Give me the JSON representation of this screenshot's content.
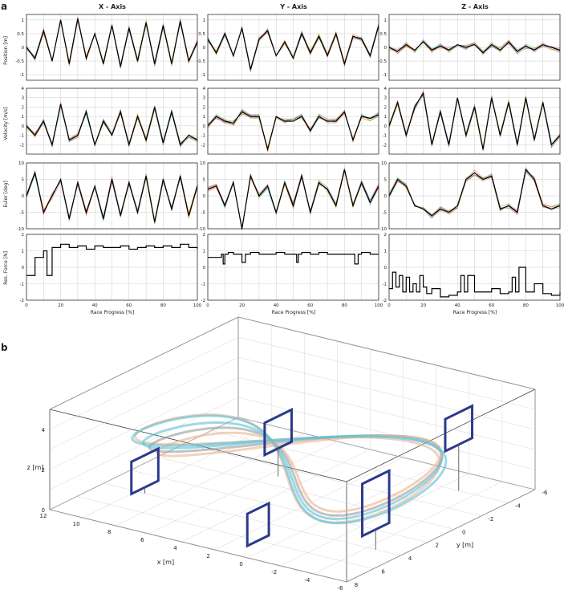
{
  "panel_labels": {
    "a": "a",
    "b": "b"
  },
  "columns": [
    "X - Axis",
    "Y - Axis",
    "Z - Axis"
  ],
  "row_labels": [
    "Position [m]",
    "Velocity [m/s]",
    "Euler [deg]",
    "Res. Force [N]"
  ],
  "x_label": "Race Progress [%]",
  "colors": {
    "mean": "#000000",
    "frame": "#333333",
    "grid": "#cccccc",
    "runs": [
      "#e41a1c",
      "#377eb8",
      "#4daf4a",
      "#984ea3",
      "#ff7f00",
      "#a65628",
      "#f781bf",
      "#17becf",
      "#bcbd22"
    ],
    "traj_blue": "#5bc0d8",
    "traj_orange": "#e8b48f",
    "traj_gray": "#9a9a9a",
    "gate": "#2b3a8c"
  },
  "chart_data": [
    {
      "type": "line",
      "panel": "position-x",
      "row": 0,
      "col": 0,
      "xlim": [
        0,
        100
      ],
      "ylim": [
        -1.2,
        1.2
      ],
      "yticks": [
        -1,
        -0.5,
        0,
        0.5,
        1
      ],
      "xticks": [],
      "x": [
        0,
        5,
        10,
        15,
        20,
        25,
        30,
        35,
        40,
        45,
        50,
        55,
        60,
        65,
        70,
        75,
        80,
        85,
        90,
        95,
        100
      ],
      "values": [
        0,
        -0.4,
        0.6,
        -0.5,
        1.0,
        -0.6,
        1.05,
        -0.4,
        0.5,
        -0.6,
        0.8,
        -0.7,
        0.7,
        -0.5,
        0.9,
        -0.6,
        0.8,
        -0.6,
        0.95,
        -0.5,
        0.2
      ]
    },
    {
      "type": "line",
      "panel": "position-y",
      "row": 0,
      "col": 1,
      "xlim": [
        0,
        100
      ],
      "ylim": [
        -1.2,
        1.2
      ],
      "yticks": [
        -1,
        -0.5,
        0,
        0.5,
        1
      ],
      "xticks": [],
      "x": [
        0,
        5,
        10,
        15,
        20,
        25,
        30,
        35,
        40,
        45,
        50,
        55,
        60,
        65,
        70,
        75,
        80,
        85,
        90,
        95,
        100
      ],
      "values": [
        0.3,
        -0.2,
        0.5,
        -0.3,
        0.7,
        -0.8,
        0.3,
        0.6,
        -0.3,
        0.2,
        -0.4,
        0.5,
        -0.2,
        0.4,
        -0.3,
        0.5,
        -0.6,
        0.4,
        0.3,
        -0.3,
        0.8
      ]
    },
    {
      "type": "line",
      "panel": "position-z",
      "row": 0,
      "col": 2,
      "xlim": [
        0,
        100
      ],
      "ylim": [
        -1.2,
        1.2
      ],
      "yticks": [
        -1,
        -0.5,
        0,
        0.5,
        1
      ],
      "xticks": [],
      "x": [
        0,
        5,
        10,
        15,
        20,
        25,
        30,
        35,
        40,
        45,
        50,
        55,
        60,
        65,
        70,
        75,
        80,
        85,
        90,
        95,
        100
      ],
      "values": [
        0,
        -0.15,
        0.1,
        -0.1,
        0.2,
        -0.1,
        0.05,
        -0.1,
        0.1,
        0,
        0.1,
        -0.2,
        0.1,
        -0.1,
        0.2,
        -0.15,
        0.05,
        -0.1,
        0.1,
        0,
        -0.1
      ]
    },
    {
      "type": "line",
      "panel": "velocity-x",
      "row": 1,
      "col": 0,
      "xlim": [
        0,
        100
      ],
      "ylim": [
        -3,
        4
      ],
      "yticks": [
        -2,
        -1,
        0,
        1,
        2,
        3,
        4
      ],
      "xticks": [],
      "x": [
        0,
        5,
        10,
        15,
        20,
        25,
        30,
        35,
        40,
        45,
        50,
        55,
        60,
        65,
        70,
        75,
        80,
        85,
        90,
        95,
        100
      ],
      "values": [
        0,
        -1,
        0.5,
        -2,
        2.3,
        -1.5,
        -1,
        1.5,
        -2,
        0.5,
        -1,
        1.5,
        -2,
        1,
        -1.5,
        2,
        -1.8,
        1.5,
        -2,
        -1,
        -1.5
      ]
    },
    {
      "type": "line",
      "panel": "velocity-y",
      "row": 1,
      "col": 1,
      "xlim": [
        0,
        100
      ],
      "ylim": [
        -3,
        4
      ],
      "yticks": [
        -2,
        -1,
        0,
        1,
        2,
        3,
        4
      ],
      "xticks": [],
      "x": [
        0,
        5,
        10,
        15,
        20,
        25,
        30,
        35,
        40,
        45,
        50,
        55,
        60,
        65,
        70,
        75,
        80,
        85,
        90,
        95,
        100
      ],
      "values": [
        0,
        1,
        0.5,
        0.3,
        1.5,
        1,
        1,
        -2.5,
        1,
        0.5,
        0.5,
        1,
        -0.5,
        1,
        0.5,
        0.5,
        1.5,
        -1.5,
        1,
        0.8,
        1.2
      ]
    },
    {
      "type": "line",
      "panel": "velocity-z",
      "row": 1,
      "col": 2,
      "xlim": [
        0,
        100
      ],
      "ylim": [
        -3,
        4
      ],
      "yticks": [
        -2,
        -1,
        0,
        1,
        2,
        3,
        4
      ],
      "xticks": [],
      "x": [
        0,
        5,
        10,
        15,
        20,
        25,
        30,
        35,
        40,
        45,
        50,
        55,
        60,
        65,
        70,
        75,
        80,
        85,
        90,
        95,
        100
      ],
      "values": [
        0,
        2.5,
        -1,
        2,
        3.5,
        -2,
        1.5,
        -2,
        3,
        -1,
        2,
        -2.5,
        3,
        -1,
        2.5,
        -2,
        3,
        -1.5,
        2.5,
        -2,
        -1
      ]
    },
    {
      "type": "line",
      "panel": "euler-x",
      "row": 2,
      "col": 0,
      "xlim": [
        0,
        100
      ],
      "ylim": [
        -10,
        10
      ],
      "yticks": [
        -10,
        -5,
        0,
        5,
        10
      ],
      "xticks": [],
      "x": [
        0,
        5,
        10,
        15,
        20,
        25,
        30,
        35,
        40,
        45,
        50,
        55,
        60,
        65,
        70,
        75,
        80,
        85,
        90,
        95,
        100
      ],
      "values": [
        0,
        7,
        -5,
        0,
        5,
        -7,
        4,
        -5,
        3,
        -7,
        5,
        -6,
        4,
        -5,
        6,
        -8,
        5,
        -4,
        6,
        -6,
        3
      ]
    },
    {
      "type": "line",
      "panel": "euler-y",
      "row": 2,
      "col": 1,
      "xlim": [
        0,
        100
      ],
      "ylim": [
        -10,
        10
      ],
      "yticks": [
        -10,
        -5,
        0,
        5,
        10
      ],
      "xticks": [],
      "x": [
        0,
        5,
        10,
        15,
        20,
        25,
        30,
        35,
        40,
        45,
        50,
        55,
        60,
        65,
        70,
        75,
        80,
        85,
        90,
        95,
        100
      ],
      "values": [
        2,
        3,
        -3,
        4,
        -10,
        6,
        0,
        3,
        -5,
        4,
        -3,
        6,
        -5,
        4,
        2,
        -3,
        8,
        -3,
        4,
        -2,
        3
      ]
    },
    {
      "type": "line",
      "panel": "euler-z",
      "row": 2,
      "col": 2,
      "xlim": [
        0,
        100
      ],
      "ylim": [
        -10,
        10
      ],
      "yticks": [
        -10,
        -5,
        0,
        5,
        10
      ],
      "xticks": [],
      "x": [
        0,
        5,
        10,
        15,
        20,
        25,
        30,
        35,
        40,
        45,
        50,
        55,
        60,
        65,
        70,
        75,
        80,
        85,
        90,
        95,
        100
      ],
      "values": [
        0,
        5,
        3,
        -3,
        -4,
        -6,
        -4,
        -5,
        -3,
        5,
        7,
        5,
        6,
        -4,
        -3,
        -5,
        8,
        5,
        -3,
        -4,
        -3
      ]
    },
    {
      "type": "line",
      "panel": "force-x",
      "row": 3,
      "col": 0,
      "xlim": [
        0,
        100
      ],
      "ylim": [
        -2,
        2
      ],
      "yticks": [
        -2,
        -1,
        0,
        1,
        2
      ],
      "xticks": [
        0,
        20,
        40,
        60,
        80,
        100
      ],
      "x": [
        0,
        4,
        5,
        9,
        10,
        12,
        15,
        20,
        25,
        30,
        35,
        40,
        45,
        50,
        55,
        60,
        65,
        70,
        75,
        80,
        85,
        90,
        95,
        100
      ],
      "values": [
        -0.5,
        -0.5,
        0.6,
        0.6,
        1.0,
        -0.5,
        1.2,
        1.4,
        1.2,
        1.3,
        1.1,
        1.3,
        1.2,
        1.2,
        1.3,
        1.1,
        1.2,
        1.3,
        1.2,
        1.3,
        1.2,
        1.4,
        1.2,
        1.1
      ]
    },
    {
      "type": "line",
      "panel": "force-y",
      "row": 3,
      "col": 1,
      "xlim": [
        0,
        100
      ],
      "ylim": [
        -2,
        2
      ],
      "yticks": [
        -2,
        -1,
        0,
        1,
        2
      ],
      "xticks": [
        0,
        20,
        40,
        60,
        80,
        100
      ],
      "x": [
        0,
        5,
        8,
        9,
        10,
        12,
        15,
        19,
        20,
        22,
        25,
        30,
        35,
        40,
        45,
        50,
        52,
        53,
        55,
        60,
        65,
        70,
        75,
        80,
        85,
        86,
        88,
        90,
        95,
        100
      ],
      "values": [
        0.6,
        0.6,
        0.8,
        0.2,
        0.8,
        0.9,
        0.8,
        0.8,
        0.3,
        0.8,
        0.9,
        0.8,
        0.8,
        0.9,
        0.8,
        0.8,
        0.3,
        0.8,
        0.9,
        0.8,
        0.9,
        0.8,
        0.8,
        0.8,
        0.8,
        0.2,
        0.8,
        0.9,
        0.8,
        0.8
      ]
    },
    {
      "type": "line",
      "panel": "force-z",
      "row": 3,
      "col": 2,
      "xlim": [
        0,
        100
      ],
      "ylim": [
        -2,
        2
      ],
      "yticks": [
        -2,
        -1,
        0,
        1,
        2
      ],
      "xticks": [
        0,
        20,
        40,
        60,
        80,
        100
      ],
      "x": [
        0,
        2,
        4,
        6,
        8,
        10,
        12,
        14,
        16,
        18,
        20,
        22,
        25,
        30,
        35,
        40,
        42,
        44,
        46,
        50,
        55,
        60,
        65,
        70,
        72,
        74,
        76,
        80,
        85,
        90,
        95,
        100
      ],
      "values": [
        -1.3,
        -0.3,
        -1.2,
        -0.5,
        -1.5,
        -0.6,
        -1.5,
        -1.0,
        -1.5,
        -0.5,
        -1.2,
        -1.6,
        -1.3,
        -1.8,
        -1.7,
        -1.5,
        -0.5,
        -1.5,
        -0.5,
        -1.5,
        -1.5,
        -1.3,
        -1.6,
        -1.5,
        -0.6,
        -1.5,
        0.0,
        -1.5,
        -1.0,
        -1.6,
        -1.7,
        -1.5
      ]
    },
    {
      "type": "scatter",
      "panel": "trajectory-3d",
      "xlabel": "x [m]",
      "ylabel": "y [m]",
      "zlabel": "z [m]",
      "xlim": [
        -6,
        12
      ],
      "ylim": [
        -6,
        8
      ],
      "zlim": [
        0,
        4
      ],
      "xticks": [
        12,
        10,
        8,
        6,
        4,
        2,
        0,
        -2,
        -4,
        -6
      ],
      "yticks": [
        -6,
        -4,
        -2,
        0,
        2,
        4,
        6,
        8
      ],
      "zticks": [
        0,
        2,
        4
      ],
      "series": []
    }
  ]
}
